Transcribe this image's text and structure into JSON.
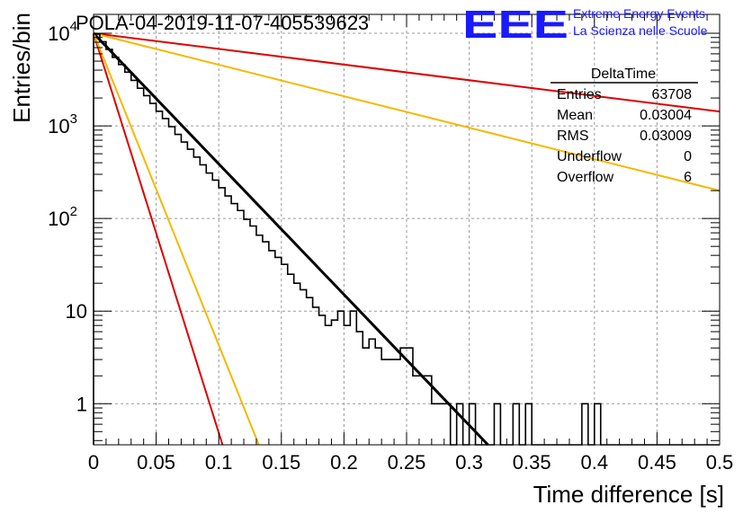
{
  "title": "POLA-04-2019-11-07-405539623",
  "logo": {
    "mark": "EEE",
    "line1": "Extreme Energy Events",
    "line2": "La Scienza nelle Scuole",
    "color": "#1a1aff"
  },
  "stats": {
    "title": "DeltaTime",
    "rows": [
      {
        "label": "Entries",
        "value": "63708"
      },
      {
        "label": "Mean",
        "value": "0.03004"
      },
      {
        "label": "RMS",
        "value": "0.03009"
      },
      {
        "label": "Underflow",
        "value": "0"
      },
      {
        "label": "Overflow",
        "value": "6"
      }
    ]
  },
  "chart_data": {
    "type": "line",
    "title": "POLA-04-2019-11-07-405539623",
    "xlabel": "Time difference [s]",
    "ylabel": "Entries/bin",
    "xlim": [
      0,
      0.5
    ],
    "ylim": [
      0.36,
      16000
    ],
    "y_scale": "log",
    "grid": true,
    "x_ticks": [
      "0",
      "0.05",
      "0.1",
      "0.15",
      "0.2",
      "0.25",
      "0.3",
      "0.35",
      "0.4",
      "0.45",
      "0.5"
    ],
    "y_ticks": [
      {
        "value": 1,
        "label": "1"
      },
      {
        "value": 10,
        "label": "10"
      },
      {
        "value": 100,
        "label": "10",
        "exp": "2"
      },
      {
        "value": 1000,
        "label": "10",
        "exp": "3"
      },
      {
        "value": 10000,
        "label": "10",
        "exp": "4"
      }
    ],
    "histogram": {
      "color": "#000000",
      "bin_width": 0.005,
      "x": [
        0.0,
        0.005,
        0.01,
        0.015,
        0.02,
        0.025,
        0.03,
        0.035,
        0.04,
        0.045,
        0.05,
        0.055,
        0.06,
        0.065,
        0.07,
        0.075,
        0.08,
        0.085,
        0.09,
        0.095,
        0.1,
        0.105,
        0.11,
        0.115,
        0.12,
        0.125,
        0.13,
        0.135,
        0.14,
        0.145,
        0.15,
        0.155,
        0.16,
        0.165,
        0.17,
        0.175,
        0.18,
        0.185,
        0.19,
        0.195,
        0.2,
        0.205,
        0.21,
        0.215,
        0.22,
        0.225,
        0.23,
        0.235,
        0.24,
        0.245,
        0.25,
        0.255,
        0.26,
        0.265,
        0.27,
        0.275,
        0.28,
        0.285,
        0.29,
        0.295,
        0.3,
        0.305,
        0.31,
        0.315,
        0.32,
        0.325,
        0.33,
        0.335,
        0.34,
        0.345,
        0.35,
        0.355,
        0.36,
        0.365,
        0.37,
        0.375,
        0.38,
        0.385,
        0.39,
        0.395,
        0.4,
        0.405,
        0.41,
        0.415,
        0.42,
        0.425,
        0.43,
        0.435,
        0.44,
        0.445,
        0.45,
        0.455,
        0.46,
        0.465,
        0.47,
        0.475,
        0.48,
        0.485,
        0.49,
        0.495
      ],
      "counts": [
        9800,
        8100,
        6700,
        5500,
        4600,
        3800,
        3100,
        2550,
        2120,
        1750,
        1440,
        1200,
        980,
        810,
        670,
        560,
        460,
        380,
        310,
        260,
        215,
        175,
        145,
        122,
        98,
        83,
        66,
        56,
        45,
        38,
        32,
        25,
        20,
        17,
        14,
        11,
        9,
        7,
        8,
        10,
        7,
        10,
        6,
        4,
        5,
        4,
        3,
        3,
        3,
        4,
        4,
        2,
        2,
        2,
        1,
        1,
        1,
        0,
        1,
        0,
        1,
        0,
        0,
        0,
        1,
        0,
        0,
        1,
        0,
        1,
        0,
        0,
        0,
        0,
        0,
        0,
        0,
        0,
        1,
        0,
        1,
        0,
        0,
        0,
        0,
        0,
        0,
        0,
        0,
        0,
        0,
        0,
        0,
        0,
        0,
        0,
        0,
        0,
        0,
        0
      ]
    },
    "series": [
      {
        "color": "#000000",
        "width": 3,
        "x": [
          0.0,
          0.315
        ],
        "values": [
          10000,
          0.36
        ]
      },
      {
        "color": "#dd0000",
        "width": 2,
        "x": [
          0.0,
          0.103
        ],
        "values": [
          10000,
          0.36
        ]
      },
      {
        "color": "#f5b800",
        "width": 2,
        "x": [
          0.0,
          0.132
        ],
        "values": [
          10000,
          0.36
        ]
      },
      {
        "color": "#dd0000",
        "width": 2,
        "x": [
          0.0,
          0.5
        ],
        "values": [
          10000,
          1430
        ]
      },
      {
        "color": "#f5b800",
        "width": 2,
        "x": [
          0.0,
          0.5
        ],
        "values": [
          10000,
          200
        ]
      }
    ]
  }
}
